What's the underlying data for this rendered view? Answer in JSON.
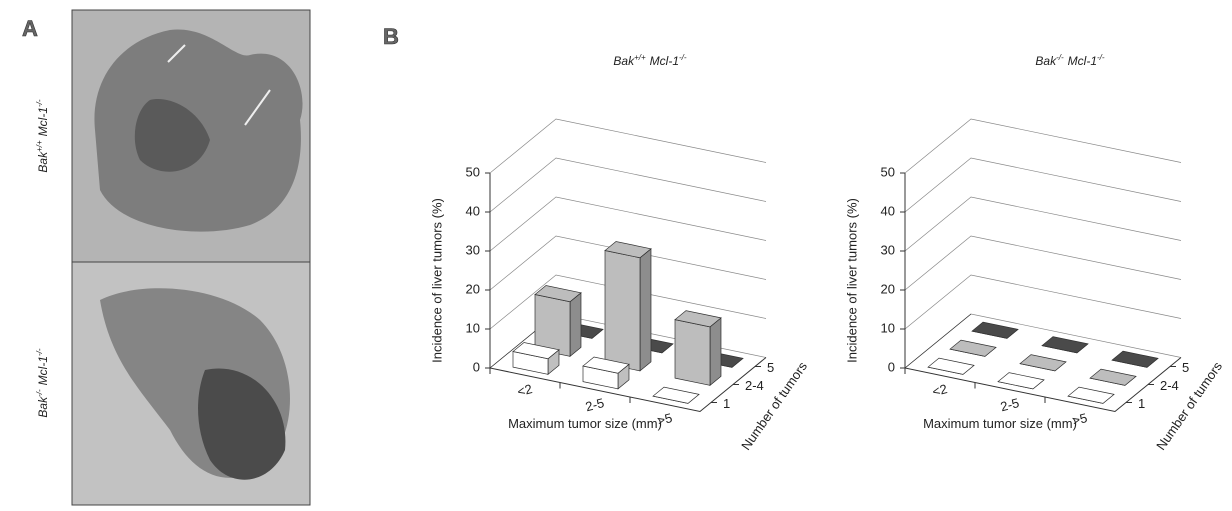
{
  "panel_labels": [
    "A",
    "B"
  ],
  "panel_a": {
    "labels": [
      [
        "Bak",
        "+/+",
        "Mcl-1",
        "-/-"
      ],
      [
        "Bak",
        "-/-",
        "Mcl-1",
        "-/-"
      ]
    ]
  },
  "chart_data": [
    {
      "type": "bar3d",
      "title": [
        "Bak",
        "+/+",
        "Mcl-1",
        "-/-"
      ],
      "x_label": "Maximum tumor size (mm)",
      "y_label": "Incidence of liver tumors (%)",
      "z_label": "Number of tumors",
      "categories": [
        "<2",
        "2-5",
        ">5"
      ],
      "series": [
        {
          "name": "1",
          "color": "#ffffff",
          "values": [
            4,
            4,
            0
          ]
        },
        {
          "name": "2-4",
          "color": "#bdbdbd",
          "values": [
            14,
            29,
            15
          ]
        },
        {
          "name": "5",
          "color": "#4a4a4a",
          "values": [
            0,
            0,
            0
          ]
        }
      ],
      "ylim": [
        0,
        50
      ],
      "yticks": [
        0,
        10,
        20,
        30,
        40,
        50
      ],
      "grid": true
    },
    {
      "type": "bar3d",
      "title": [
        "Bak",
        "-/-",
        "Mcl-1",
        "-/-"
      ],
      "x_label": "Maximum tumor size (mm)",
      "y_label": "Incidence of liver tumors (%)",
      "z_label": "Number of tumors",
      "categories": [
        "<2",
        "2-5",
        ">5"
      ],
      "series": [
        {
          "name": "1",
          "color": "#ffffff",
          "values": [
            0,
            0,
            0
          ]
        },
        {
          "name": "2-4",
          "color": "#bdbdbd",
          "values": [
            0,
            0,
            0
          ]
        },
        {
          "name": "5",
          "color": "#4a4a4a",
          "values": [
            0,
            0,
            0
          ]
        }
      ],
      "ylim": [
        0,
        50
      ],
      "yticks": [
        0,
        10,
        20,
        30,
        40,
        50
      ],
      "grid": true
    }
  ]
}
